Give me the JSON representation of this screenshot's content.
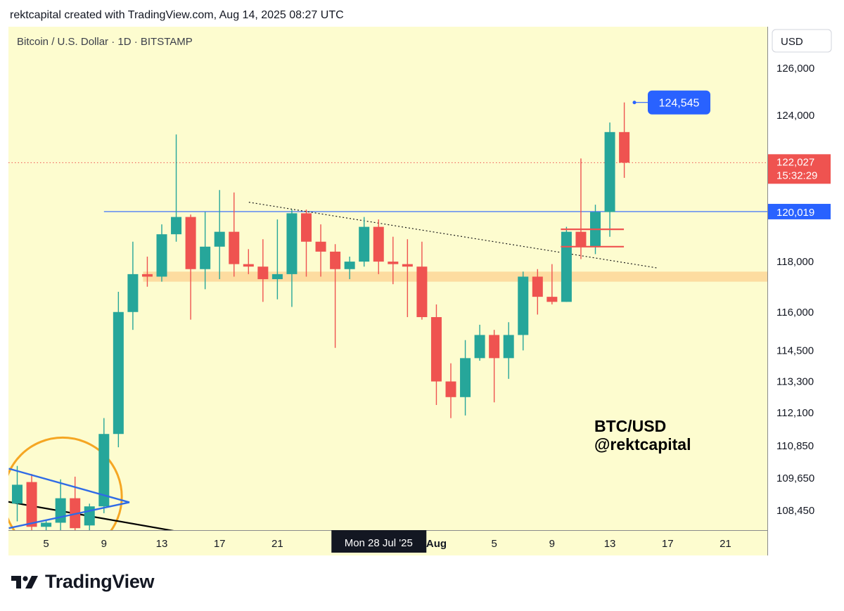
{
  "header": {
    "credit": "rektcapital created with TradingView.com, Aug 14, 2025 08:27 UTC"
  },
  "chart_title": "Bitcoin / U.S. Dollar · 1D · BITSTAMP",
  "currency_button": "USD",
  "watermark": [
    "BTC/USD",
    "@rektcapital"
  ],
  "brand": {
    "name": "TradingView"
  },
  "colors": {
    "background": "#fdfccf",
    "up": "#26a69a",
    "down": "#ef5350",
    "support_zone": "#fdd89a",
    "accent_blue": "#2962ff",
    "triangle_blue": "#2f6be6",
    "circle_orange": "#f5a623",
    "axis_text": "#131722"
  },
  "chart_data": {
    "type": "candlestick",
    "title": "Bitcoin / U.S. Dollar · 1D · BITSTAMP",
    "y_axis": {
      "scale": "log",
      "ticks": [
        126000,
        124000,
        122000,
        120000,
        118000,
        116000,
        114500,
        113300,
        112100,
        110850,
        109650,
        108450
      ]
    },
    "x_axis": {
      "ticks": [
        {
          "date": "2025-07-05",
          "label": "5"
        },
        {
          "date": "2025-07-09",
          "label": "9"
        },
        {
          "date": "2025-07-13",
          "label": "13"
        },
        {
          "date": "2025-07-17",
          "label": "17"
        },
        {
          "date": "2025-07-21",
          "label": "21"
        },
        {
          "date": "2025-08-01",
          "label": "Aug"
        },
        {
          "date": "2025-08-05",
          "label": "5"
        },
        {
          "date": "2025-08-09",
          "label": "9"
        },
        {
          "date": "2025-08-13",
          "label": "13"
        },
        {
          "date": "2025-08-17",
          "label": "17"
        },
        {
          "date": "2025-08-21",
          "label": "21"
        }
      ],
      "crosshair": {
        "date": "2025-07-28",
        "label": "Mon 28 Jul '25"
      }
    },
    "candles": [
      {
        "date": "2025-07-03",
        "open": 108700,
        "high": 110100,
        "low": 108050,
        "close": 109400
      },
      {
        "date": "2025-07-04",
        "open": 109500,
        "high": 109800,
        "low": 107400,
        "close": 107850
      },
      {
        "date": "2025-07-05",
        "open": 107850,
        "high": 108100,
        "low": 107650,
        "close": 108000
      },
      {
        "date": "2025-07-06",
        "open": 108000,
        "high": 109600,
        "low": 107700,
        "close": 108900
      },
      {
        "date": "2025-07-07",
        "open": 108900,
        "high": 109700,
        "low": 107500,
        "close": 107800
      },
      {
        "date": "2025-07-08",
        "open": 107900,
        "high": 108700,
        "low": 107600,
        "close": 108600
      },
      {
        "date": "2025-07-09",
        "open": 108600,
        "high": 111900,
        "low": 108350,
        "close": 111300
      },
      {
        "date": "2025-07-10",
        "open": 111300,
        "high": 116800,
        "low": 110800,
        "close": 116000
      },
      {
        "date": "2025-07-11",
        "open": 116000,
        "high": 118800,
        "low": 115300,
        "close": 117500
      },
      {
        "date": "2025-07-12",
        "open": 117500,
        "high": 118200,
        "low": 117000,
        "close": 117400
      },
      {
        "date": "2025-07-13",
        "open": 117400,
        "high": 119500,
        "low": 117200,
        "close": 119100
      },
      {
        "date": "2025-07-14",
        "open": 119100,
        "high": 123200,
        "low": 118800,
        "close": 119800
      },
      {
        "date": "2025-07-15",
        "open": 119800,
        "high": 119900,
        "low": 115700,
        "close": 117700
      },
      {
        "date": "2025-07-16",
        "open": 117700,
        "high": 120000,
        "low": 116900,
        "close": 118600
      },
      {
        "date": "2025-07-17",
        "open": 118600,
        "high": 120900,
        "low": 117300,
        "close": 119200
      },
      {
        "date": "2025-07-18",
        "open": 119200,
        "high": 120800,
        "low": 117400,
        "close": 117900
      },
      {
        "date": "2025-07-19",
        "open": 117900,
        "high": 118500,
        "low": 117500,
        "close": 117800
      },
      {
        "date": "2025-07-20",
        "open": 117800,
        "high": 118900,
        "low": 116400,
        "close": 117300
      },
      {
        "date": "2025-07-21",
        "open": 117300,
        "high": 119700,
        "low": 116500,
        "close": 117500
      },
      {
        "date": "2025-07-22",
        "open": 117500,
        "high": 120100,
        "low": 116200,
        "close": 119950
      },
      {
        "date": "2025-07-23",
        "open": 119950,
        "high": 120100,
        "low": 117400,
        "close": 118800
      },
      {
        "date": "2025-07-24",
        "open": 118800,
        "high": 119500,
        "low": 117400,
        "close": 118400
      },
      {
        "date": "2025-07-25",
        "open": 118400,
        "high": 118700,
        "low": 114600,
        "close": 117700
      },
      {
        "date": "2025-07-26",
        "open": 117700,
        "high": 118200,
        "low": 117300,
        "close": 118000
      },
      {
        "date": "2025-07-27",
        "open": 118000,
        "high": 119800,
        "low": 117800,
        "close": 119400
      },
      {
        "date": "2025-07-28",
        "open": 119400,
        "high": 119700,
        "low": 117500,
        "close": 118000
      },
      {
        "date": "2025-07-29",
        "open": 118000,
        "high": 119000,
        "low": 117100,
        "close": 117900
      },
      {
        "date": "2025-07-30",
        "open": 117900,
        "high": 118900,
        "low": 115800,
        "close": 117800
      },
      {
        "date": "2025-07-31",
        "open": 117800,
        "high": 118800,
        "low": 115700,
        "close": 115800
      },
      {
        "date": "2025-08-01",
        "open": 115800,
        "high": 116300,
        "low": 112400,
        "close": 113300
      },
      {
        "date": "2025-08-02",
        "open": 113300,
        "high": 114000,
        "low": 111900,
        "close": 112700
      },
      {
        "date": "2025-08-03",
        "open": 112700,
        "high": 114900,
        "low": 112000,
        "close": 114200
      },
      {
        "date": "2025-08-04",
        "open": 114200,
        "high": 115500,
        "low": 114100,
        "close": 115100
      },
      {
        "date": "2025-08-05",
        "open": 115100,
        "high": 115300,
        "low": 112500,
        "close": 114200
      },
      {
        "date": "2025-08-06",
        "open": 114200,
        "high": 115600,
        "low": 113400,
        "close": 115100
      },
      {
        "date": "2025-08-07",
        "open": 115100,
        "high": 117600,
        "low": 114500,
        "close": 117400
      },
      {
        "date": "2025-08-08",
        "open": 117400,
        "high": 117700,
        "low": 115900,
        "close": 116600
      },
      {
        "date": "2025-08-09",
        "open": 116600,
        "high": 117900,
        "low": 116300,
        "close": 116400
      },
      {
        "date": "2025-08-10",
        "open": 116400,
        "high": 119400,
        "low": 116400,
        "close": 119200
      },
      {
        "date": "2025-08-11",
        "open": 119200,
        "high": 122200,
        "low": 118100,
        "close": 118600
      },
      {
        "date": "2025-08-12",
        "open": 118600,
        "high": 120300,
        "low": 118300,
        "close": 120000
      },
      {
        "date": "2025-08-13",
        "open": 120000,
        "high": 123700,
        "low": 119000,
        "close": 123300
      },
      {
        "date": "2025-08-14",
        "open": 123300,
        "high": 124545,
        "low": 121400,
        "close": 122027
      }
    ],
    "price_markers": [
      {
        "value": 124545,
        "label": "124,545",
        "kind": "high_label"
      },
      {
        "value": 122027,
        "label": "122,027",
        "countdown": "15:32:29",
        "kind": "last_price"
      },
      {
        "value": 120019,
        "label": "120,019",
        "kind": "horizontal_line"
      }
    ],
    "annotations": {
      "support_zone": {
        "from_date": "2025-07-12",
        "to_date": "2025-08-24",
        "low": 117200,
        "high": 117600
      },
      "horizontal_line": {
        "from_date": "2025-07-09",
        "value": 120019
      },
      "dotted_trendline": {
        "start": {
          "date": "2025-07-20",
          "value": 120400
        },
        "end": {
          "date": "2025-08-16",
          "value": 117750
        }
      },
      "retest_box": {
        "from_date": "2025-08-10",
        "to_date": "2025-08-13",
        "top": 119300,
        "bottom": 118600
      },
      "triangle_upper": {
        "start": {
          "date": "2025-07-03",
          "value": 110000
        },
        "end": {
          "date": "2025-07-11",
          "value": 108750
        }
      },
      "triangle_lower": {
        "start": {
          "date": "2025-07-03",
          "value": 107800
        },
        "end": {
          "date": "2025-07-11",
          "value": 108750
        }
      },
      "black_trendline": {
        "start": {
          "date": "2025-07-02",
          "value": 108850
        },
        "end": {
          "date": "2025-07-16",
          "value": 107500
        }
      },
      "highlight_circle": {
        "center": {
          "date": "2025-07-06",
          "value": 108750
        }
      }
    }
  }
}
